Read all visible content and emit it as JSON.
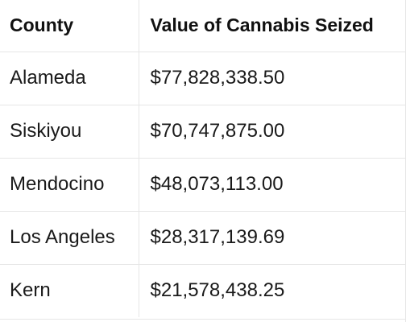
{
  "table": {
    "headers": [
      "County",
      "Value of Cannabis Seized"
    ],
    "rows": [
      [
        "Alameda",
        "$77,828,338.50"
      ],
      [
        "Siskiyou",
        "$70,747,875.00"
      ],
      [
        "Mendocino",
        "$48,073,113.00"
      ],
      [
        "Los Angeles",
        "$28,317,139.69"
      ],
      [
        "Kern",
        "$21,578,438.25"
      ]
    ]
  }
}
